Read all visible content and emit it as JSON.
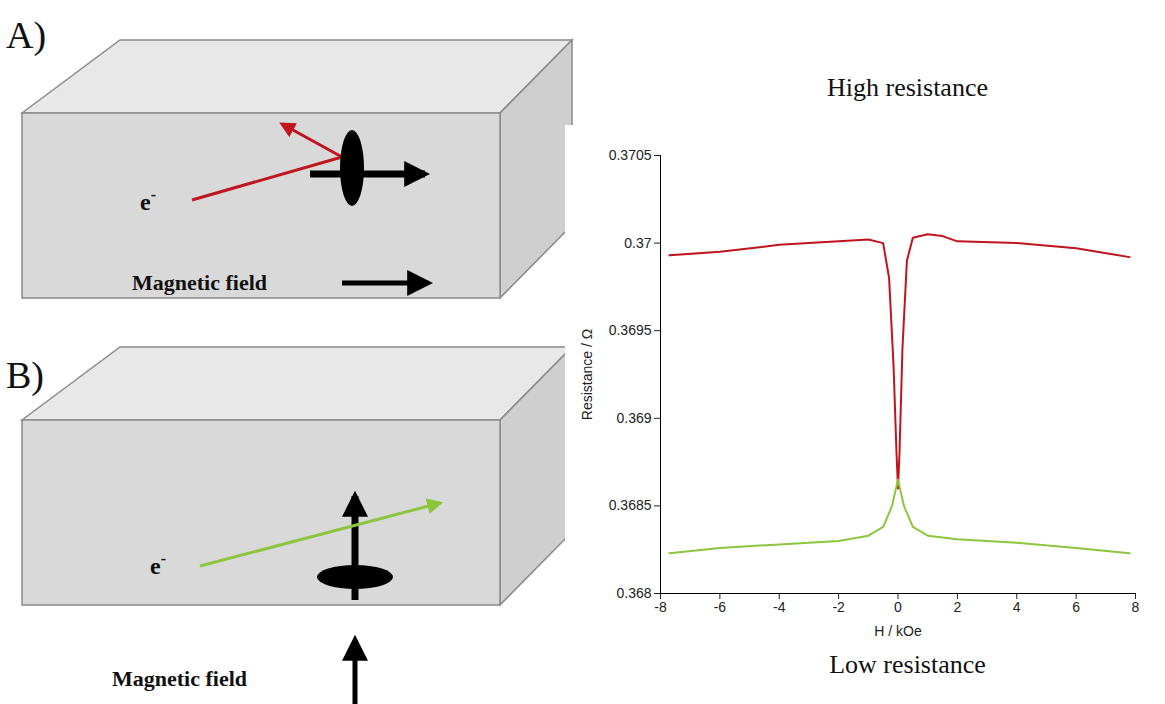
{
  "chart_data": {
    "type": "line",
    "xlabel": "H / kOe",
    "ylabel": "Resistance / Ω",
    "xlim": [
      -8,
      8
    ],
    "xticks": [
      -8,
      -6,
      -4,
      -2,
      0,
      2,
      4,
      6,
      8
    ],
    "ylim": [
      0.368,
      0.3705
    ],
    "yticks": [
      0.368,
      0.3685,
      0.369,
      0.3695,
      0.37,
      0.3705
    ],
    "grid": false,
    "series": [
      {
        "name": "High resistance",
        "color": "#c0141e",
        "x": [
          -7.7,
          -6,
          -4,
          -2,
          -1,
          -0.5,
          -0.3,
          -0.15,
          -0.05,
          0,
          0.05,
          0.15,
          0.3,
          0.5,
          1,
          1.5,
          2,
          4,
          6,
          7.8
        ],
        "values": [
          0.36993,
          0.36995,
          0.36999,
          0.37001,
          0.37002,
          0.37,
          0.3698,
          0.3693,
          0.3688,
          0.3686,
          0.3688,
          0.3694,
          0.3699,
          0.37003,
          0.37005,
          0.37004,
          0.37001,
          0.37,
          0.36997,
          0.36992
        ]
      },
      {
        "name": "Low resistance",
        "color": "#8cc63f",
        "x": [
          -7.7,
          -6,
          -4,
          -2,
          -1,
          -0.5,
          -0.2,
          0,
          0.2,
          0.5,
          1,
          2,
          4,
          6,
          7.8
        ],
        "values": [
          0.36823,
          0.36826,
          0.36828,
          0.3683,
          0.36833,
          0.36838,
          0.3685,
          0.36865,
          0.3685,
          0.36838,
          0.36833,
          0.36831,
          0.36829,
          0.36826,
          0.36823
        ]
      }
    ]
  },
  "diagram": {
    "panels": [
      {
        "label": "A)",
        "electron": "e",
        "electron_charge": "-",
        "field_label": "Magnetic field"
      },
      {
        "label": "B)",
        "electron": "e",
        "electron_charge": "-",
        "field_label": "Magnetic field"
      }
    ]
  }
}
